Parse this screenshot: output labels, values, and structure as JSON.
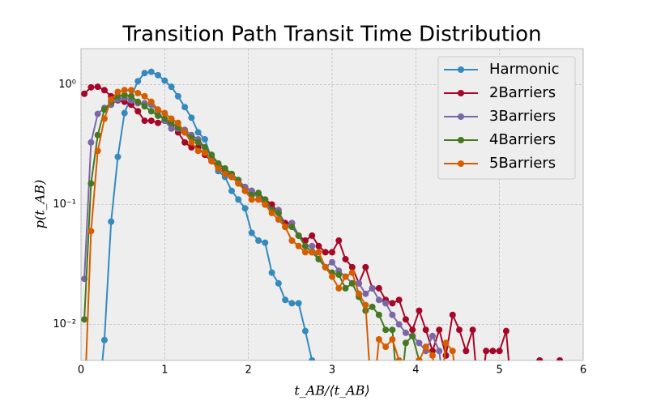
{
  "chart_data": {
    "type": "line",
    "title": "Transition Path Transit Time Distribution",
    "xlabel": "t_AB/⟨t_AB⟩",
    "ylabel": "p(t_AB)",
    "log_y": true,
    "grid": true,
    "legend": "upper right",
    "xlim": [
      0,
      6
    ],
    "xticks": [
      0,
      1,
      2,
      3,
      4,
      5,
      6
    ],
    "ylim": [
      0.005,
      2
    ],
    "yticks": [
      {
        "value": 0.01,
        "label": "10⁻²"
      },
      {
        "value": 0.1,
        "label": "10⁻¹"
      },
      {
        "value": 1,
        "label": "10⁰"
      }
    ],
    "x": [
      0.04,
      0.12,
      0.2,
      0.28,
      0.36,
      0.44,
      0.52,
      0.6,
      0.68,
      0.76,
      0.84,
      0.92,
      1.0,
      1.08,
      1.16,
      1.24,
      1.32,
      1.4,
      1.48,
      1.56,
      1.64,
      1.72,
      1.8,
      1.88,
      1.96,
      2.04,
      2.12,
      2.2,
      2.28,
      2.36,
      2.44,
      2.52,
      2.6,
      2.68,
      2.76,
      2.84,
      2.92,
      3.0,
      3.08,
      3.16,
      3.24,
      3.32,
      3.4,
      3.48,
      3.56,
      3.64,
      3.72,
      3.8,
      3.88,
      3.96,
      4.04,
      4.12,
      4.2,
      4.28,
      4.36,
      4.44,
      4.52,
      4.6,
      4.68,
      4.76,
      4.84,
      4.92,
      5.0,
      5.08,
      5.16,
      5.24,
      5.32,
      5.4,
      5.48,
      5.56,
      5.64,
      5.72
    ],
    "series": [
      {
        "name": "Harmonic",
        "color": "#348ABD",
        "values": [
          null,
          null,
          0,
          0.0074,
          0.072,
          0.25,
          0.58,
          0.8,
          1.07,
          1.25,
          1.28,
          1.2,
          1.08,
          0.96,
          0.8,
          0.65,
          0.53,
          0.4,
          0.35,
          0.24,
          0.19,
          0.17,
          0.13,
          0.11,
          0.093,
          0.058,
          0.05,
          0.048,
          0.027,
          0.022,
          0.016,
          0.015,
          0.015,
          0.0088,
          0.005,
          null,
          null,
          null,
          null,
          null,
          null,
          null,
          null,
          null,
          null,
          null,
          null,
          null,
          null,
          null,
          null,
          null,
          null,
          null,
          null,
          null,
          null,
          null,
          null,
          null,
          null,
          null,
          null,
          null,
          null,
          null,
          null,
          null,
          null,
          null,
          null,
          null
        ]
      },
      {
        "name": "2Barriers",
        "color": "#A60628",
        "values": [
          0.84,
          0.95,
          0.96,
          0.9,
          0.8,
          0.74,
          0.72,
          0.68,
          0.6,
          0.5,
          0.5,
          0.48,
          0.5,
          0.46,
          0.4,
          0.33,
          0.3,
          0.3,
          0.26,
          0.23,
          0.21,
          0.19,
          0.17,
          0.15,
          0.14,
          0.13,
          0.12,
          0.11,
          0.1,
          0.085,
          0.07,
          0.07,
          0.055,
          0.05,
          0.055,
          0.045,
          0.04,
          0.04,
          0.05,
          0.035,
          0.03,
          0.022,
          0.03,
          0.02,
          0.02,
          0.016,
          0.015,
          0.016,
          0.011,
          0.009,
          0.013,
          0.009,
          0.006,
          0.009,
          0.0055,
          0.012,
          0.009,
          0.006,
          0.009,
          0,
          0.006,
          0.006,
          0.006,
          0.0088,
          0,
          0,
          0,
          0,
          0.005,
          0,
          0,
          0.005
        ]
      },
      {
        "name": "3Barriers",
        "color": "#7A68A6",
        "values": [
          0.024,
          0.33,
          0.57,
          0.64,
          0.68,
          0.75,
          0.78,
          0.74,
          0.7,
          0.7,
          0.68,
          0.6,
          0.5,
          0.43,
          0.43,
          0.42,
          0.38,
          0.35,
          0.3,
          0.25,
          0.22,
          0.2,
          0.18,
          0.16,
          0.14,
          0.13,
          0.12,
          0.1,
          0.09,
          0.09,
          0.065,
          0.07,
          0.055,
          0.045,
          0.045,
          0.035,
          0.03,
          0.033,
          0.028,
          0.025,
          0.022,
          0.022,
          0.018,
          0.02,
          0.016,
          0.015,
          0.012,
          0.01,
          0.0085,
          0.008,
          0.007,
          0.006,
          0.008,
          0.006,
          0,
          null,
          null,
          null,
          null,
          null,
          null,
          null,
          null,
          null,
          null,
          null,
          null,
          null,
          null,
          null,
          null,
          null
        ]
      },
      {
        "name": "4Barriers",
        "color": "#467821",
        "values": [
          0.011,
          0.15,
          0.38,
          0.62,
          0.72,
          0.8,
          0.82,
          0.8,
          0.72,
          0.66,
          0.6,
          0.55,
          0.52,
          0.48,
          0.44,
          0.4,
          0.36,
          0.33,
          0.3,
          0.26,
          0.22,
          0.2,
          0.18,
          0.16,
          0.13,
          0.12,
          0.125,
          0.11,
          0.09,
          0.085,
          0.065,
          0.065,
          0.055,
          0.045,
          0.04,
          0.035,
          0.03,
          0.027,
          0.026,
          0.02,
          0.022,
          0.017,
          0.013,
          0.014,
          0.012,
          0.009,
          0.009,
          0,
          0.007,
          0.008,
          0.005,
          0,
          null,
          null,
          null,
          null,
          null,
          null,
          null,
          null,
          null,
          null,
          null,
          null,
          null,
          null,
          null,
          null,
          null,
          null,
          null,
          null
        ]
      },
      {
        "name": "5Barriers",
        "color": "#D55E00",
        "values": [
          0,
          0.06,
          0.28,
          0.52,
          0.75,
          0.87,
          0.9,
          0.9,
          0.85,
          0.8,
          0.72,
          0.62,
          0.58,
          0.52,
          0.48,
          0.4,
          0.33,
          0.28,
          0.27,
          0.23,
          0.2,
          0.18,
          0.17,
          0.15,
          0.13,
          0.11,
          0.11,
          0.1,
          0.085,
          0.075,
          0.065,
          0.05,
          0.045,
          0.04,
          0.04,
          0.04,
          0.03,
          0.025,
          0.02,
          0.025,
          0.027,
          0.018,
          0.0145,
          0,
          0.0075,
          0.0065,
          0.0075,
          0.005,
          0,
          0,
          0.005,
          0.0065,
          0.0055,
          0,
          0.007,
          0.006,
          0,
          null,
          null,
          null,
          null,
          null,
          null,
          null,
          null,
          null,
          null,
          null,
          null,
          null,
          null,
          null
        ]
      }
    ]
  }
}
